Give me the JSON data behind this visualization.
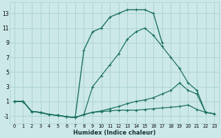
{
  "xlabel": "Humidex (Indice chaleur)",
  "bg_color": "#cce8e8",
  "grid_color": "#aad0d0",
  "line_color": "#1a7060",
  "xlim": [
    -0.5,
    23.5
  ],
  "ylim": [
    -2.0,
    14.5
  ],
  "xticks": [
    0,
    1,
    2,
    3,
    4,
    5,
    6,
    7,
    8,
    9,
    10,
    11,
    12,
    13,
    14,
    15,
    16,
    17,
    18,
    19,
    20,
    21,
    22,
    23
  ],
  "yticks": [
    -1,
    1,
    3,
    5,
    7,
    9,
    11,
    13
  ],
  "series": [
    {
      "x": [
        0,
        1,
        2,
        3,
        4,
        5,
        6,
        7,
        8,
        9,
        10,
        11,
        12,
        13,
        14,
        15,
        16,
        17
      ],
      "y": [
        1,
        1,
        -0.4,
        -0.5,
        -0.8,
        -0.9,
        -1.1,
        -1.2,
        8.0,
        10.5,
        11.0,
        12.5,
        13.0,
        13.5,
        13.5,
        13.5,
        13.0,
        9.0
      ]
    },
    {
      "x": [
        0,
        1,
        2,
        3,
        4,
        5,
        6,
        7,
        8,
        9,
        10,
        11,
        12,
        13,
        14,
        15,
        16,
        17,
        18,
        19,
        20,
        21,
        22,
        23
      ],
      "y": [
        1,
        1,
        -0.4,
        -0.5,
        -0.8,
        -0.9,
        -1.1,
        -1.2,
        -0.8,
        3.0,
        4.5,
        6.0,
        7.5,
        9.5,
        10.5,
        11.0,
        10.0,
        8.5,
        7.0,
        5.5,
        3.5,
        2.5,
        -0.5,
        -0.7
      ]
    },
    {
      "x": [
        0,
        1,
        2,
        3,
        4,
        5,
        6,
        7,
        8,
        9,
        10,
        11,
        12,
        13,
        14,
        15,
        16,
        17,
        18,
        19,
        20,
        21,
        22,
        23
      ],
      "y": [
        1,
        1,
        -0.4,
        -0.5,
        -0.8,
        -0.9,
        -1.1,
        -1.2,
        -0.8,
        -0.5,
        -0.3,
        0.0,
        0.3,
        0.7,
        1.0,
        1.2,
        1.5,
        2.0,
        2.5,
        3.5,
        2.5,
        2.0,
        -0.5,
        -0.7
      ]
    },
    {
      "x": [
        0,
        1,
        2,
        3,
        4,
        5,
        6,
        7,
        8,
        9,
        10,
        11,
        12,
        13,
        14,
        15,
        16,
        17,
        18,
        19,
        20,
        21,
        22,
        23
      ],
      "y": [
        1,
        1,
        -0.4,
        -0.5,
        -0.8,
        -0.9,
        -1.1,
        -1.2,
        -0.8,
        -0.5,
        -0.4,
        -0.3,
        -0.2,
        -0.2,
        -0.2,
        -0.1,
        0.0,
        0.1,
        0.2,
        0.3,
        0.5,
        -0.1,
        -0.5,
        -0.7
      ]
    }
  ]
}
